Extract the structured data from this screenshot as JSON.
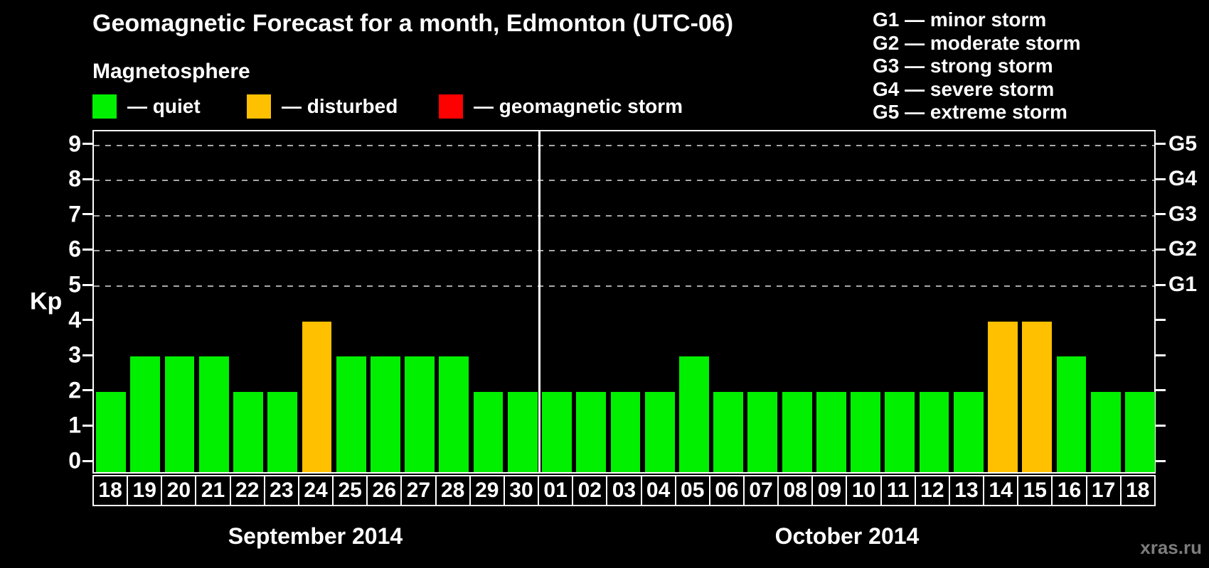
{
  "title": "Geomagnetic Forecast for a month, Edmonton (UTC-06)",
  "subtitle": "Magnetosphere",
  "legend": {
    "items": [
      {
        "key": "quiet",
        "label": "— quiet"
      },
      {
        "key": "disturbed",
        "label": "— disturbed"
      },
      {
        "key": "storm",
        "label": "— geomagnetic storm"
      }
    ]
  },
  "storm_scale_legend": {
    "items": [
      "G1 — minor storm",
      "G2 — moderate storm",
      "G3 — strong storm",
      "G4 — severe storm",
      "G5 — extreme storm"
    ]
  },
  "watermark": "xras.ru",
  "chart_data": {
    "type": "bar",
    "title": "Geomagnetic Forecast for a month, Edmonton (UTC-06)",
    "ylabel": "Kp",
    "ylim": [
      0,
      9
    ],
    "yticks": [
      0,
      1,
      2,
      3,
      4,
      5,
      6,
      7,
      8,
      9
    ],
    "grid_levels": [
      5,
      6,
      7,
      8,
      9
    ],
    "grid_on": true,
    "right_axis": [
      {
        "kp": 5,
        "label": "G1"
      },
      {
        "kp": 6,
        "label": "G2"
      },
      {
        "kp": 7,
        "label": "G3"
      },
      {
        "kp": 8,
        "label": "G4"
      },
      {
        "kp": 9,
        "label": "G5"
      }
    ],
    "status_colors": {
      "quiet": "#00F000",
      "disturbed": "#FFC000",
      "storm": "#FF0000"
    },
    "months": [
      {
        "label": "September 2014",
        "days": [
          {
            "day": "18",
            "kp": 2,
            "status": "quiet"
          },
          {
            "day": "19",
            "kp": 3,
            "status": "quiet"
          },
          {
            "day": "20",
            "kp": 3,
            "status": "quiet"
          },
          {
            "day": "21",
            "kp": 3,
            "status": "quiet"
          },
          {
            "day": "22",
            "kp": 2,
            "status": "quiet"
          },
          {
            "day": "23",
            "kp": 2,
            "status": "quiet"
          },
          {
            "day": "24",
            "kp": 4,
            "status": "disturbed"
          },
          {
            "day": "25",
            "kp": 3,
            "status": "quiet"
          },
          {
            "day": "26",
            "kp": 3,
            "status": "quiet"
          },
          {
            "day": "27",
            "kp": 3,
            "status": "quiet"
          },
          {
            "day": "28",
            "kp": 3,
            "status": "quiet"
          },
          {
            "day": "29",
            "kp": 2,
            "status": "quiet"
          },
          {
            "day": "30",
            "kp": 2,
            "status": "quiet"
          }
        ]
      },
      {
        "label": "October 2014",
        "days": [
          {
            "day": "01",
            "kp": 2,
            "status": "quiet"
          },
          {
            "day": "02",
            "kp": 2,
            "status": "quiet"
          },
          {
            "day": "03",
            "kp": 2,
            "status": "quiet"
          },
          {
            "day": "04",
            "kp": 2,
            "status": "quiet"
          },
          {
            "day": "05",
            "kp": 3,
            "status": "quiet"
          },
          {
            "day": "06",
            "kp": 2,
            "status": "quiet"
          },
          {
            "day": "07",
            "kp": 2,
            "status": "quiet"
          },
          {
            "day": "08",
            "kp": 2,
            "status": "quiet"
          },
          {
            "day": "09",
            "kp": 2,
            "status": "quiet"
          },
          {
            "day": "10",
            "kp": 2,
            "status": "quiet"
          },
          {
            "day": "11",
            "kp": 2,
            "status": "quiet"
          },
          {
            "day": "12",
            "kp": 2,
            "status": "quiet"
          },
          {
            "day": "13",
            "kp": 2,
            "status": "quiet"
          },
          {
            "day": "14",
            "kp": 4,
            "status": "disturbed"
          },
          {
            "day": "15",
            "kp": 4,
            "status": "disturbed"
          },
          {
            "day": "16",
            "kp": 3,
            "status": "quiet"
          },
          {
            "day": "17",
            "kp": 2,
            "status": "quiet"
          },
          {
            "day": "18",
            "kp": 2,
            "status": "quiet"
          }
        ]
      }
    ]
  }
}
